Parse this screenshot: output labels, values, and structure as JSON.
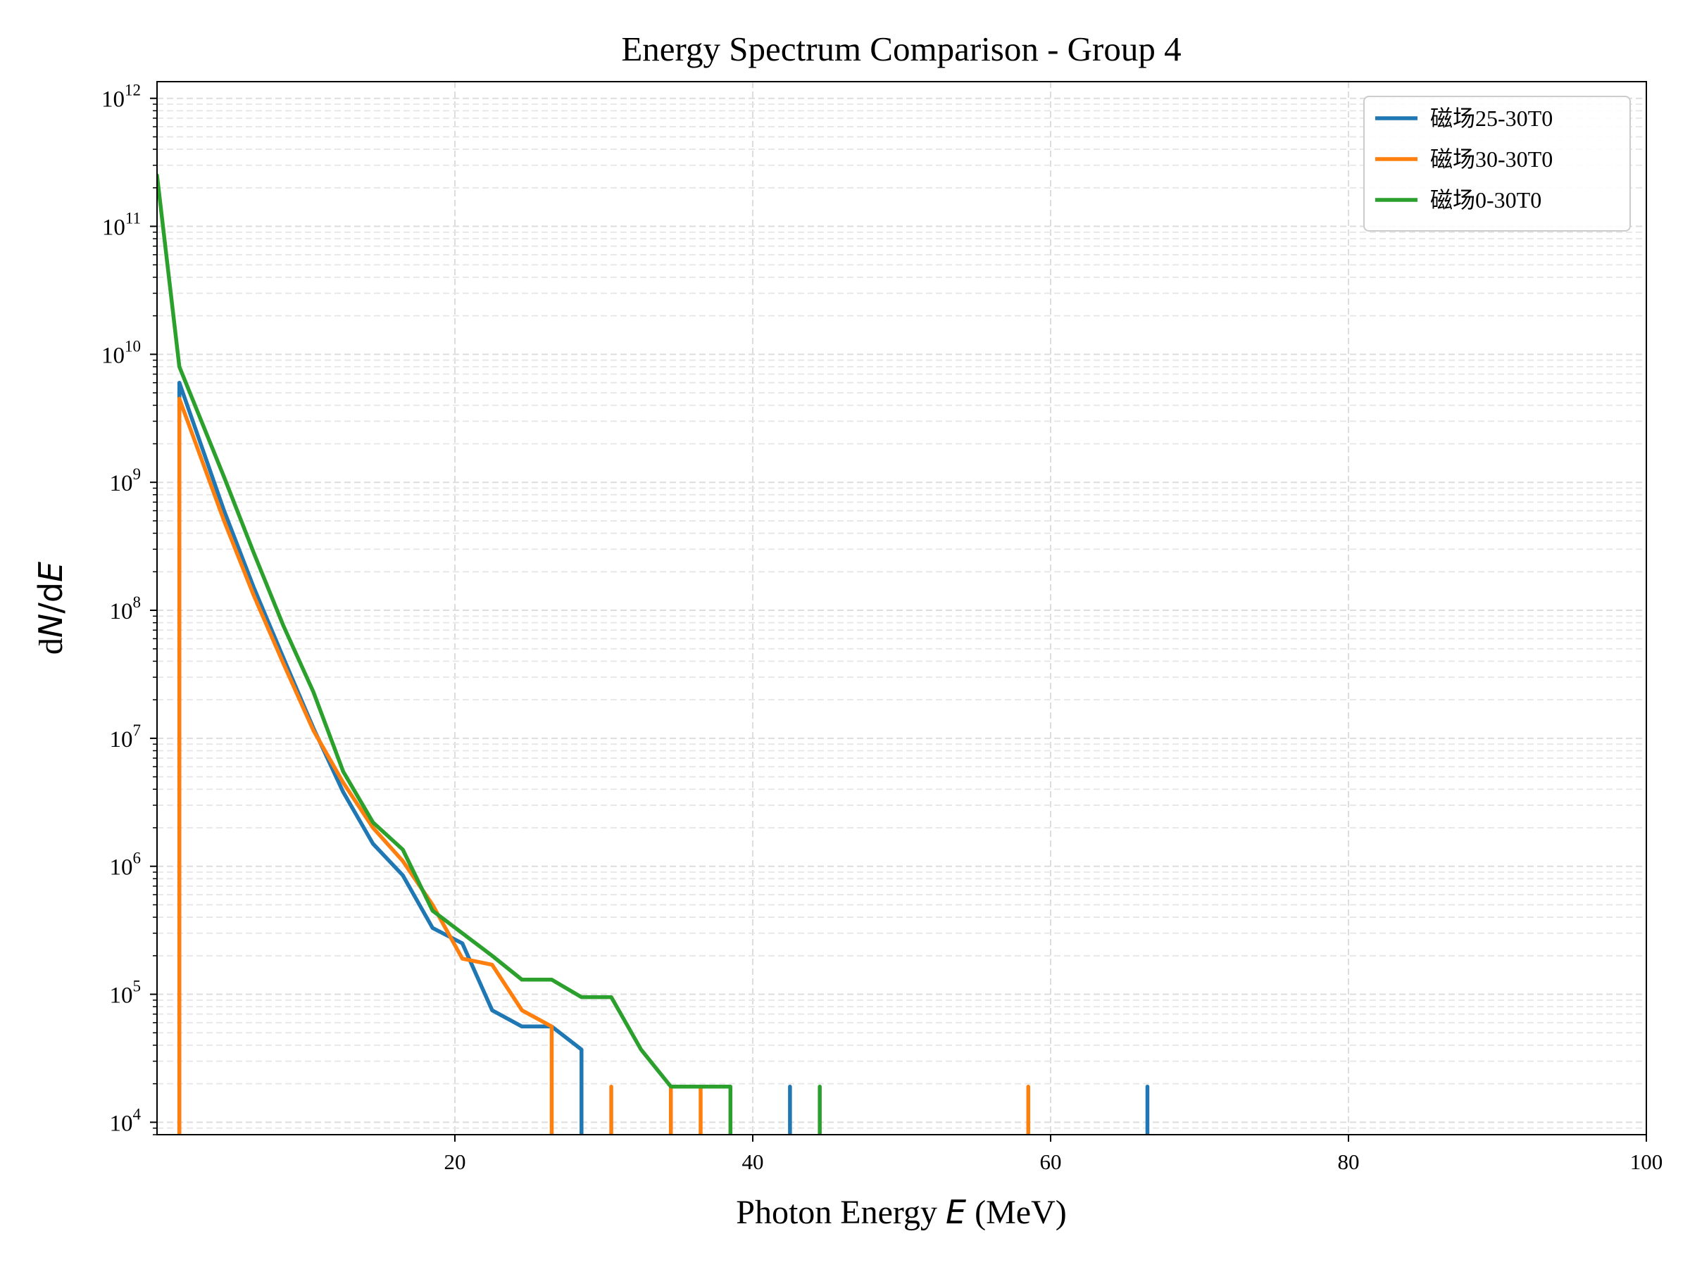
{
  "chart_data": {
    "type": "line",
    "title": "Energy Spectrum Comparison - Group 4",
    "xlabel": {
      "prefix": "Photon Energy ",
      "var": "E",
      "suffix": " (MeV)"
    },
    "ylabel": {
      "d1": "d",
      "var1": "N",
      "slash": "/d",
      "var2": "E"
    },
    "xlim": [
      0,
      100
    ],
    "ylim": [
      8000,
      1350000000000.0
    ],
    "yscale": "log",
    "xticks": [
      20,
      40,
      60,
      80,
      100
    ],
    "xtick_labels": [
      "20",
      "40",
      "60",
      "80",
      "100"
    ],
    "yticks": [
      {
        "exp": 4,
        "label_base": "10",
        "label_exp": "4"
      },
      {
        "exp": 5,
        "label_base": "10",
        "label_exp": "5"
      },
      {
        "exp": 6,
        "label_base": "10",
        "label_exp": "6"
      },
      {
        "exp": 7,
        "label_base": "10",
        "label_exp": "7"
      },
      {
        "exp": 8,
        "label_base": "10",
        "label_exp": "8"
      },
      {
        "exp": 9,
        "label_base": "10",
        "label_exp": "9"
      },
      {
        "exp": 10,
        "label_base": "10",
        "label_exp": "10"
      },
      {
        "exp": 11,
        "label_base": "10",
        "label_exp": "11"
      },
      {
        "exp": 12,
        "label_base": "10",
        "label_exp": "12"
      }
    ],
    "grid": true,
    "legend_position": "top-right",
    "series": [
      {
        "name": "磁场25-30T0",
        "color": "#1f77b4",
        "points": [
          [
            1.5,
            8000
          ],
          [
            1.5,
            6000000000.0
          ],
          [
            4.5,
            600000000.0
          ],
          [
            6.5,
            150000000.0
          ],
          [
            8.5,
            42000000.0
          ],
          [
            10.5,
            12000000.0
          ],
          [
            12.5,
            3800000.0
          ],
          [
            14.5,
            1500000.0
          ],
          [
            16.5,
            850000.0
          ],
          [
            18.5,
            330000.0
          ],
          [
            20.5,
            250000.0
          ],
          [
            22.5,
            75000.0
          ],
          [
            24.5,
            56000.0
          ],
          [
            26.5,
            56000.0
          ],
          [
            28.5,
            37000.0
          ],
          [
            28.5,
            8000
          ]
        ],
        "spikes": [
          [
            42.5,
            19000.0
          ],
          [
            66.5,
            19000.0
          ]
        ]
      },
      {
        "name": "磁场30-30T0",
        "color": "#ff7f0e",
        "points": [
          [
            1.5,
            8000
          ],
          [
            1.5,
            4500000000.0
          ],
          [
            4.5,
            500000000.0
          ],
          [
            6.5,
            130000000.0
          ],
          [
            8.5,
            38000000.0
          ],
          [
            10.5,
            11500000.0
          ],
          [
            12.5,
            4500000.0
          ],
          [
            14.5,
            2000000.0
          ],
          [
            16.5,
            1100000.0
          ],
          [
            18.5,
            500000.0
          ],
          [
            20.5,
            190000.0
          ],
          [
            22.5,
            170000.0
          ],
          [
            24.5,
            75000.0
          ],
          [
            26.5,
            56000.0
          ],
          [
            26.5,
            8000
          ]
        ],
        "spikes": [
          [
            30.5,
            19000.0
          ],
          [
            34.5,
            19000.0
          ],
          [
            36.5,
            19000.0
          ],
          [
            58.5,
            19000.0
          ]
        ]
      },
      {
        "name": "磁场0-30T0",
        "color": "#2ca02c",
        "points": [
          [
            0,
            250000000000.0
          ],
          [
            1.5,
            8000000000.0
          ],
          [
            4.5,
            1100000000.0
          ],
          [
            6.5,
            280000000.0
          ],
          [
            8.5,
            75000000.0
          ],
          [
            10.5,
            23000000.0
          ],
          [
            12.5,
            5500000.0
          ],
          [
            14.5,
            2200000.0
          ],
          [
            16.5,
            1350000.0
          ],
          [
            18.5,
            450000.0
          ],
          [
            20.5,
            300000.0
          ],
          [
            22.5,
            200000.0
          ],
          [
            24.5,
            130000.0
          ],
          [
            26.5,
            130000.0
          ],
          [
            28.5,
            95000.0
          ],
          [
            30.5,
            95000.0
          ],
          [
            32.5,
            37000.0
          ],
          [
            34.5,
            19000.0
          ],
          [
            36.5,
            19000.0
          ],
          [
            38.5,
            19000.0
          ],
          [
            38.5,
            8000
          ]
        ],
        "spikes": [
          [
            44.5,
            19000.0
          ]
        ]
      }
    ]
  }
}
